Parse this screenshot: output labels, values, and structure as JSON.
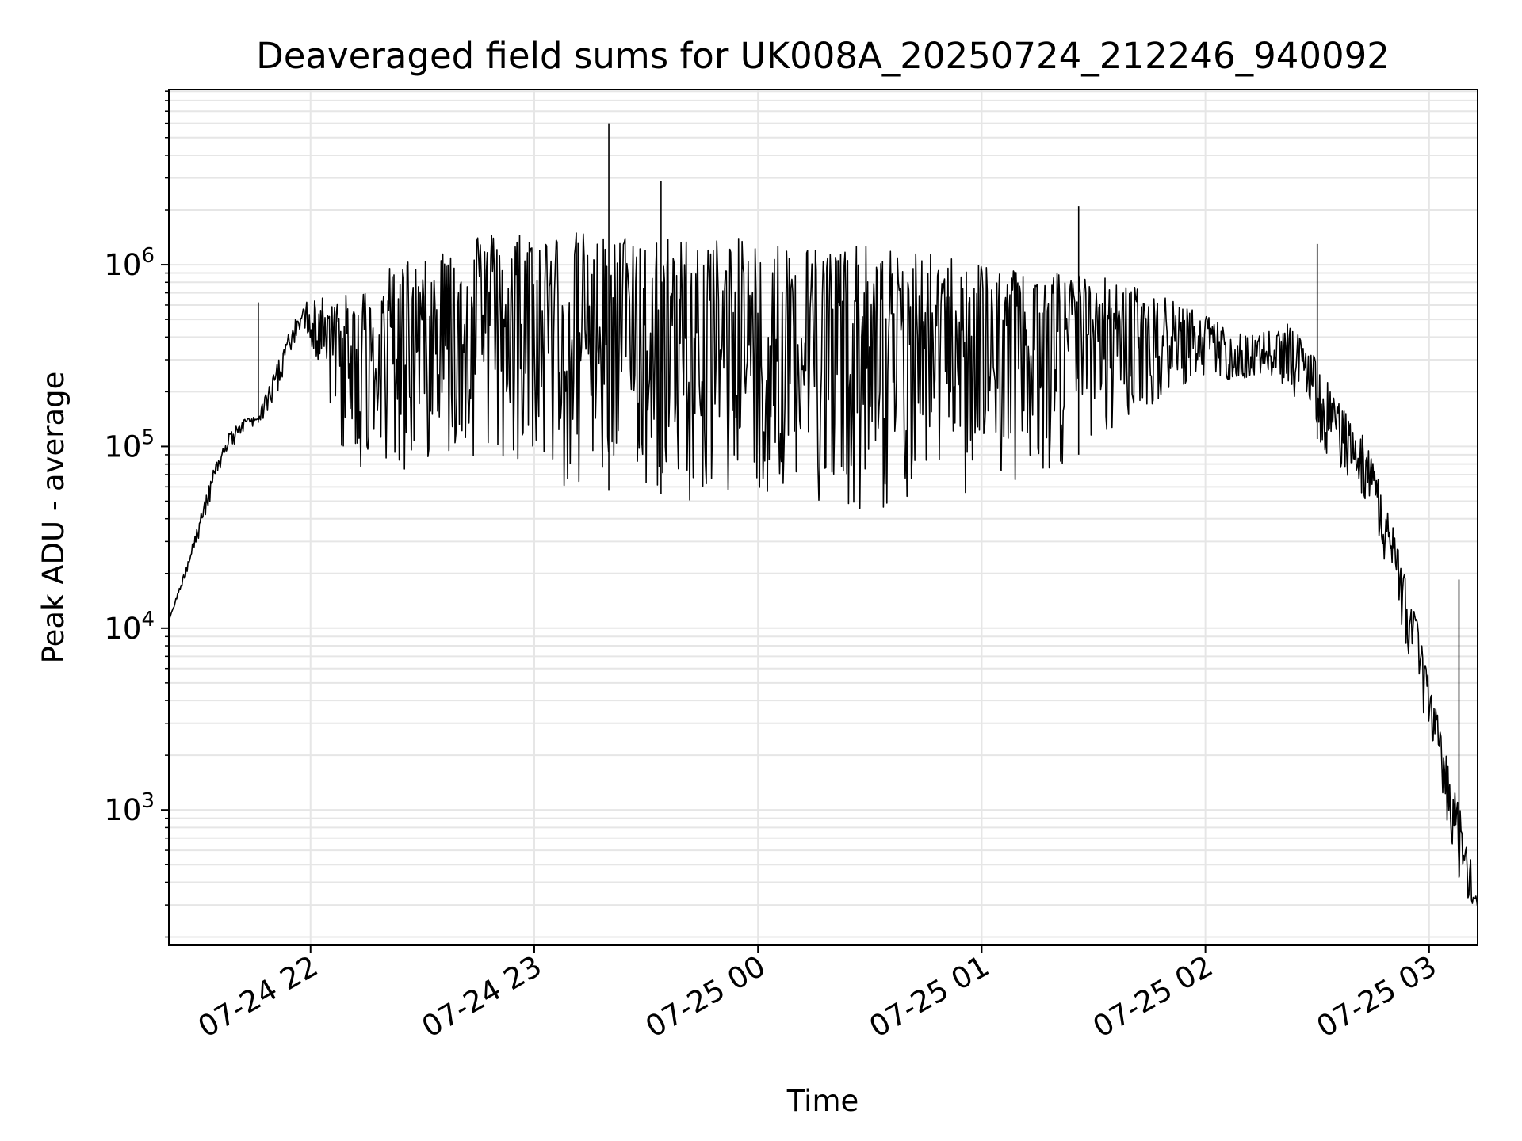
{
  "chart_data": {
    "type": "line",
    "title": "Deaveraged field sums for UK008A_20250724_212246_940092",
    "xlabel": "Time",
    "ylabel": "Peak ADU - average",
    "y_scale": "log",
    "ylim": [
      180,
      9200000
    ],
    "xlim": [
      "2025-07-24 21:22",
      "2025-07-25 03:13"
    ],
    "grid": true,
    "x_tick_labels": [
      "07-24 22",
      "07-24 23",
      "07-25 00",
      "07-25 01",
      "07-25 02",
      "07-25 03"
    ],
    "x_tick_values": [
      "2025-07-24 22:00",
      "2025-07-24 23:00",
      "2025-07-25 00:00",
      "2025-07-25 01:00",
      "2025-07-25 02:00",
      "2025-07-25 03:00"
    ],
    "y_tick_labels": [
      {
        "base": "10",
        "exp": "3"
      },
      {
        "base": "10",
        "exp": "4"
      },
      {
        "base": "10",
        "exp": "5"
      },
      {
        "base": "10",
        "exp": "6"
      }
    ],
    "y_tick_values": [
      1000,
      10000,
      100000,
      1000000
    ],
    "line_color": "#000000",
    "series": [
      {
        "x": [
          "2025-07-24 21:22",
          "2025-07-24 21:26",
          "2025-07-24 21:30",
          "2025-07-24 21:34",
          "2025-07-24 21:38",
          "2025-07-24 21:42",
          "2025-07-24 21:46",
          "2025-07-24 21:50",
          "2025-07-24 21:54",
          "2025-07-24 21:58",
          "2025-07-24 22:02",
          "2025-07-24 22:06",
          "2025-07-24 22:10",
          "2025-07-24 22:14",
          "2025-07-24 22:18",
          "2025-07-24 22:22",
          "2025-07-24 22:26",
          "2025-07-24 22:30",
          "2025-07-24 22:34",
          "2025-07-24 22:38",
          "2025-07-24 22:42",
          "2025-07-24 22:46",
          "2025-07-24 22:50",
          "2025-07-24 22:54",
          "2025-07-24 22:58",
          "2025-07-24 23:02",
          "2025-07-24 23:06",
          "2025-07-24 23:10",
          "2025-07-24 23:14",
          "2025-07-24 23:18",
          "2025-07-24 23:22",
          "2025-07-24 23:26",
          "2025-07-24 23:30",
          "2025-07-24 23:34",
          "2025-07-24 23:38",
          "2025-07-24 23:42",
          "2025-07-24 23:46",
          "2025-07-24 23:50",
          "2025-07-24 23:54",
          "2025-07-24 23:58",
          "2025-07-25 00:02",
          "2025-07-25 00:06",
          "2025-07-25 00:10",
          "2025-07-25 00:14",
          "2025-07-25 00:18",
          "2025-07-25 00:22",
          "2025-07-25 00:26",
          "2025-07-25 00:30",
          "2025-07-25 00:34",
          "2025-07-25 00:38",
          "2025-07-25 00:42",
          "2025-07-25 00:46",
          "2025-07-25 00:50",
          "2025-07-25 00:54",
          "2025-07-25 00:58",
          "2025-07-25 01:02",
          "2025-07-25 01:06",
          "2025-07-25 01:10",
          "2025-07-25 01:14",
          "2025-07-25 01:18",
          "2025-07-25 01:22",
          "2025-07-25 01:26",
          "2025-07-25 01:30",
          "2025-07-25 01:34",
          "2025-07-25 01:38",
          "2025-07-25 01:42",
          "2025-07-25 01:46",
          "2025-07-25 01:50",
          "2025-07-25 01:54",
          "2025-07-25 01:58",
          "2025-07-25 02:02",
          "2025-07-25 02:06",
          "2025-07-25 02:10",
          "2025-07-25 02:14",
          "2025-07-25 02:18",
          "2025-07-25 02:22",
          "2025-07-25 02:26",
          "2025-07-25 02:30",
          "2025-07-25 02:34",
          "2025-07-25 02:38",
          "2025-07-25 02:42",
          "2025-07-25 02:46",
          "2025-07-25 02:50",
          "2025-07-25 02:54",
          "2025-07-25 02:58",
          "2025-07-25 03:02",
          "2025-07-25 03:06",
          "2025-07-25 03:10",
          "2025-07-25 03:13"
        ],
        "low": [
          11000,
          18000,
          30000,
          55000,
          90000,
          120000,
          135000,
          160000,
          300000,
          450000,
          260000,
          150000,
          70000,
          70000,
          110000,
          70000,
          65000,
          95000,
          75000,
          95000,
          90000,
          85000,
          95000,
          50000,
          90000,
          70000,
          60000,
          55000,
          60000,
          50000,
          65000,
          60000,
          60000,
          55000,
          55000,
          50000,
          50000,
          55000,
          55000,
          55000,
          55000,
          50000,
          50000,
          48000,
          52000,
          48000,
          45000,
          45000,
          40000,
          50000,
          45000,
          50000,
          52000,
          55000,
          50000,
          55000,
          60000,
          60000,
          65000,
          70000,
          80000,
          90000,
          100000,
          110000,
          130000,
          150000,
          170000,
          200000,
          220000,
          220000,
          230000,
          220000,
          230000,
          250000,
          220000,
          200000,
          160000,
          110000,
          80000,
          70000,
          55000,
          35000,
          15000,
          8000,
          3500,
          1500,
          600,
          300,
          280
        ],
        "high": [
          11000,
          20000,
          40000,
          75000,
          120000,
          140000,
          150000,
          250000,
          420000,
          600000,
          700000,
          650000,
          700000,
          750000,
          850000,
          1000000,
          1100000,
          1300000,
          1300000,
          1400000,
          1500000,
          1600000,
          1500000,
          1550000,
          1600000,
          1550000,
          1500000,
          1550000,
          1500000,
          1450000,
          1450000,
          1500000,
          1500000,
          1450000,
          1400000,
          1450000,
          1450000,
          1400000,
          1400000,
          1400000,
          1400000,
          1350000,
          1300000,
          1300000,
          1250000,
          1300000,
          1300000,
          1250000,
          1250000,
          1200000,
          1200000,
          1150000,
          1150000,
          1100000,
          1100000,
          1050000,
          1000000,
          1000000,
          1000000,
          1000000,
          950000,
          900000,
          900000,
          850000,
          800000,
          750000,
          700000,
          650000,
          600000,
          550000,
          500000,
          450000,
          420000,
          420000,
          450000,
          480000,
          420000,
          300000,
          200000,
          150000,
          120000,
          70000,
          40000,
          20000,
          9000,
          3500,
          1500,
          800,
          300
        ],
        "spikes": [
          {
            "x": "2025-07-24 21:46",
            "y": 620000
          },
          {
            "x": "2025-07-24 23:20",
            "y": 6000000
          },
          {
            "x": "2025-07-24 23:34",
            "y": 2900000
          },
          {
            "x": "2025-07-25 01:26",
            "y": 2100000
          },
          {
            "x": "2025-07-25 02:30",
            "y": 1300000
          },
          {
            "x": "2025-07-25 03:08",
            "y": 18500
          }
        ]
      }
    ]
  }
}
